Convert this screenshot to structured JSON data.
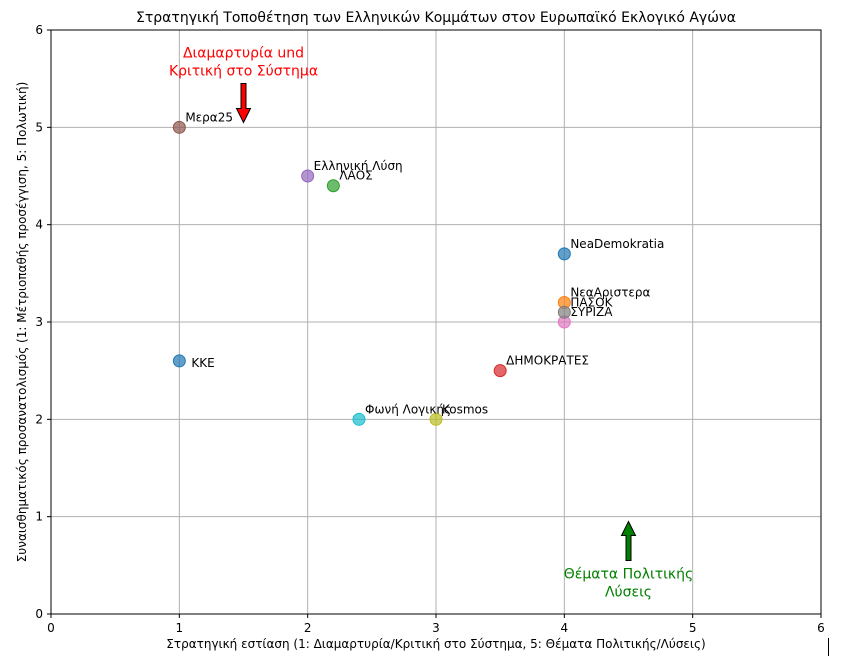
{
  "chart_data": {
    "type": "scatter",
    "title": "Στρατηγική Τοποθέτηση των Ελληνικών Κομμάτων στον Ευρωπαϊκό Εκλογικό Αγώνα",
    "xlabel": "Στρατηγική εστίαση (1: Διαμαρτυρία/Κριτική στο Σύστημα, 5: Θέματα Πολιτικής/Λύσεις)",
    "ylabel": "Συναισθηματικός προσανατολισμός (1: Μέτριοπαθής προσέγγιση, 5: Πολωτική)",
    "xlim": [
      0,
      6
    ],
    "ylim": [
      0,
      6
    ],
    "xticks": [
      "0",
      "1",
      "2",
      "3",
      "4",
      "5",
      "6"
    ],
    "yticks": [
      "0",
      "1",
      "2",
      "3",
      "4",
      "5",
      "6"
    ],
    "grid": true,
    "points": [
      {
        "label": "NeaDemokratia",
        "x": 4.0,
        "y": 3.7,
        "color": "#1f77b4"
      },
      {
        "label": "ΝεαΑριστερα",
        "x": 4.0,
        "y": 3.2,
        "color": "#ff7f0e"
      },
      {
        "label": "ΛΑΟΣ",
        "x": 2.2,
        "y": 4.4,
        "color": "#2ca02c"
      },
      {
        "label": "ΔΗΜΟΚΡΑΤΕΣ",
        "x": 3.5,
        "y": 2.5,
        "color": "#d62728"
      },
      {
        "label": "Ελληνική Λύση",
        "x": 2.0,
        "y": 4.5,
        "color": "#9467bd"
      },
      {
        "label": "Μερα25",
        "x": 1.0,
        "y": 5.0,
        "color": "#8c564b"
      },
      {
        "label": "ΣΥΡΙΖΑ",
        "x": 4.0,
        "y": 3.0,
        "color": "#e377c2"
      },
      {
        "label": "ΠΑΣΟΚ",
        "x": 4.0,
        "y": 3.1,
        "color": "#7f7f7f"
      },
      {
        "label": "Kosmos",
        "x": 3.0,
        "y": 2.0,
        "color": "#bcbd22"
      },
      {
        "label": "Φωνή Λογικής",
        "x": 2.4,
        "y": 2.0,
        "color": "#17becf"
      },
      {
        "label": "KKE",
        "x": 1.0,
        "y": 2.6,
        "color": "#1f77b4"
      }
    ],
    "annotations": [
      {
        "text_lines": [
          "Διαμαρτυρία und",
          "Κριτική στο Σύστημα"
        ],
        "color": "#ff0000",
        "arrow_color": "#ff0000",
        "arrow_x": 1.5,
        "arrow_tail_y": 5.45,
        "arrow_head_y": 5.05,
        "direction": "down"
      },
      {
        "text_lines": [
          "Θέματα Πολιτικής",
          "Λύσεις"
        ],
        "color": "#008000",
        "arrow_color": "#008000",
        "arrow_x": 4.5,
        "arrow_tail_y": 0.55,
        "arrow_head_y": 0.95,
        "direction": "up"
      }
    ]
  }
}
